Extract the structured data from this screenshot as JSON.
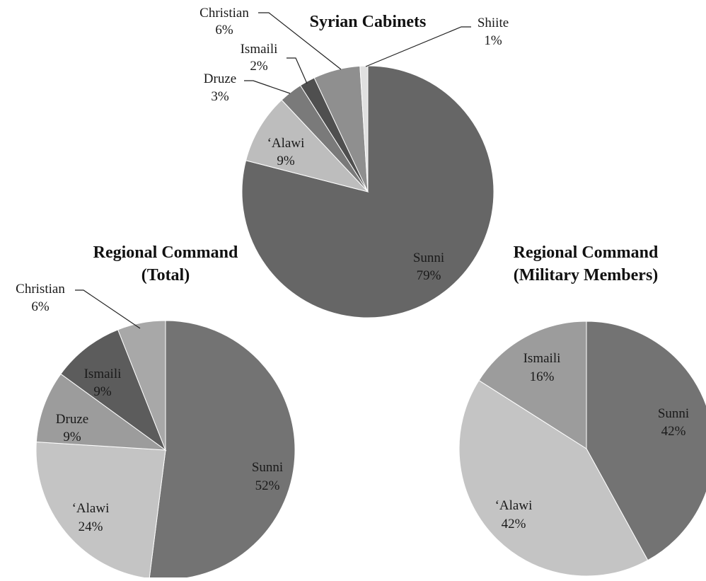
{
  "chart_data": [
    {
      "type": "pie",
      "title": "Syrian Cabinets",
      "slices": [
        {
          "label": "Sunni",
          "value": 79,
          "value_label": "79%",
          "color": "#666666"
        },
        {
          "label": "‘Alawi",
          "value": 9,
          "value_label": "9%",
          "color": "#bdbdbd"
        },
        {
          "label": "Druze",
          "value": 3,
          "value_label": "3%",
          "color": "#7a7a7a"
        },
        {
          "label": "Ismaili",
          "value": 2,
          "value_label": "2%",
          "color": "#4f4f4f"
        },
        {
          "label": "Christian",
          "value": 6,
          "value_label": "6%",
          "color": "#8f8f8f"
        },
        {
          "label": "Shiite",
          "value": 1,
          "value_label": "1%",
          "color": "#e0e0e0"
        }
      ]
    },
    {
      "type": "pie",
      "title_lines": [
        "Regional Command",
        "(Total)"
      ],
      "slices": [
        {
          "label": "Sunni",
          "value": 52,
          "value_label": "52%",
          "color": "#737373"
        },
        {
          "label": "‘Alawi",
          "value": 24,
          "value_label": "24%",
          "color": "#c4c4c4"
        },
        {
          "label": "Druze",
          "value": 9,
          "value_label": "9%",
          "color": "#9c9c9c"
        },
        {
          "label": "Ismaili",
          "value": 9,
          "value_label": "9%",
          "color": "#5c5c5c"
        },
        {
          "label": "Christian",
          "value": 6,
          "value_label": "6%",
          "color": "#a8a8a8"
        }
      ]
    },
    {
      "type": "pie",
      "title_lines": [
        "Regional Command",
        "(Military Members)"
      ],
      "slices": [
        {
          "label": "Sunni",
          "value": 42,
          "value_label": "42%",
          "color": "#737373"
        },
        {
          "label": "‘Alawi",
          "value": 42,
          "value_label": "42%",
          "color": "#c4c4c4"
        },
        {
          "label": "Ismaili",
          "value": 16,
          "value_label": "16%",
          "color": "#9c9c9c"
        }
      ]
    }
  ]
}
